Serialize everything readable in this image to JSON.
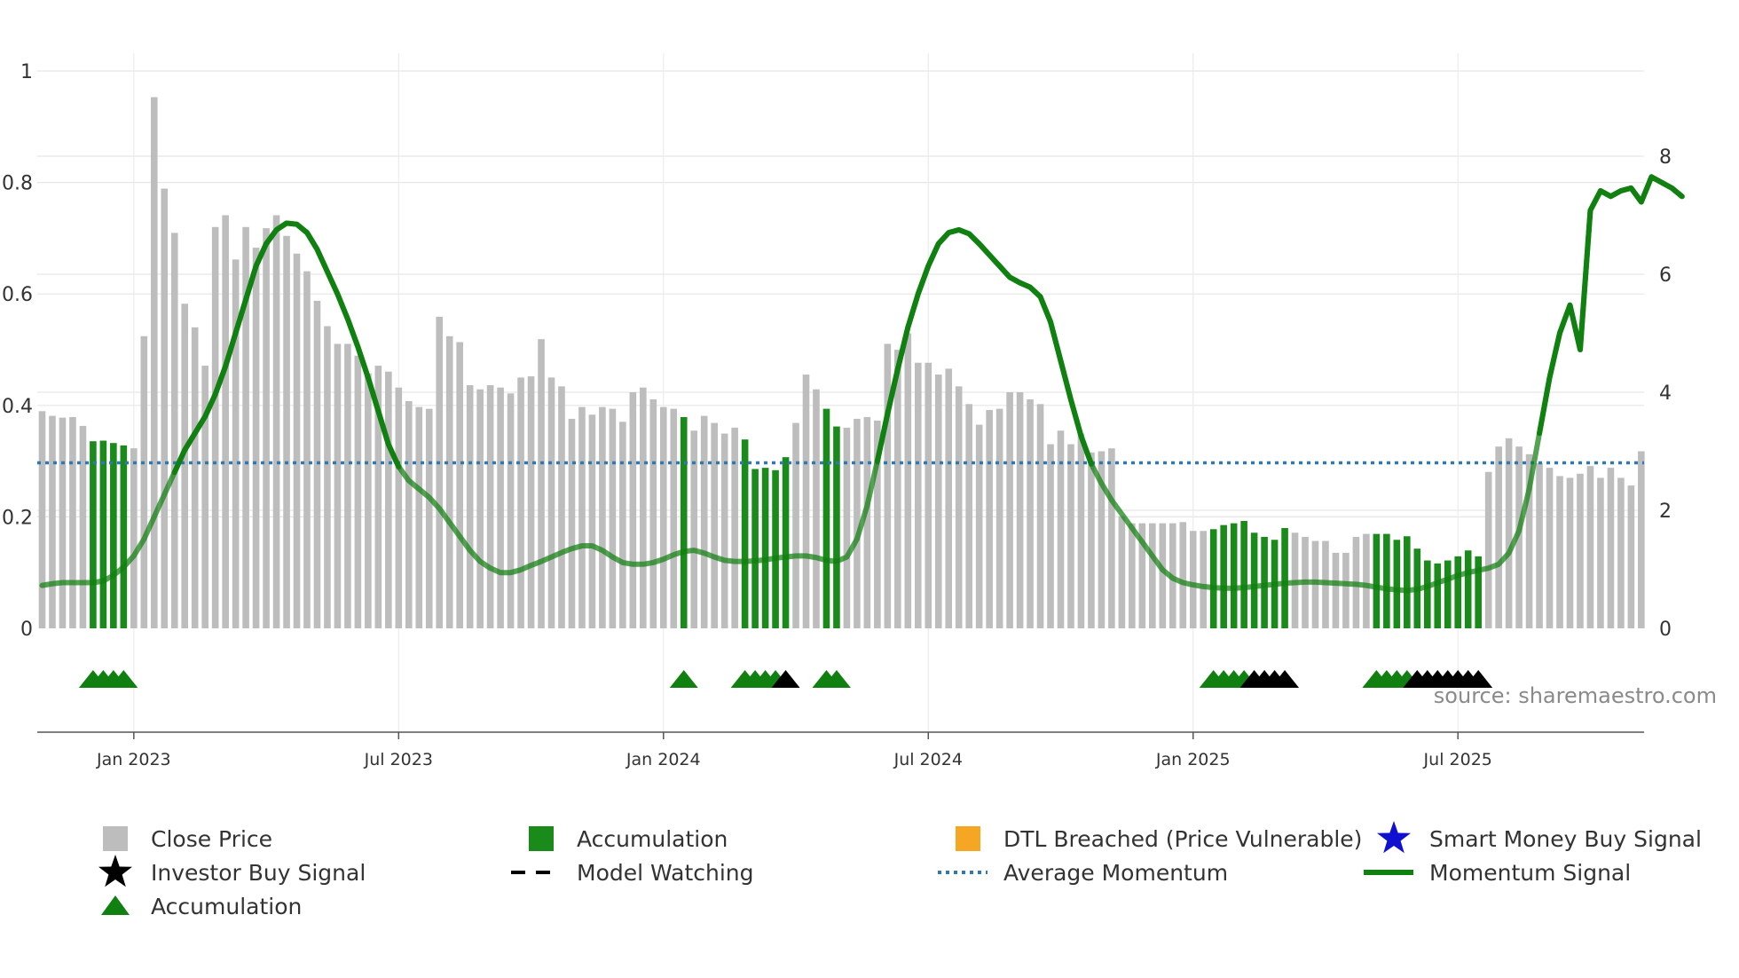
{
  "chart_data": {
    "type": "bar",
    "source": "source: sharemaestro.com",
    "colors": {
      "close": "#bdbdbd",
      "accumulation": "#1a8a1a",
      "momentum": "#108010",
      "average": "#2e78b4",
      "triangle_green": "#108010",
      "triangle_black": "#000000",
      "dtl": "#f5a623",
      "smart": "#1010d0",
      "grid": "#e6e6e6"
    },
    "left_axis": {
      "range": [
        0,
        1
      ],
      "ticks": [
        0,
        0.2,
        0.4,
        0.6,
        0.8,
        1
      ],
      "tick_labels": [
        "0",
        "0.2",
        "0.4",
        "0.6",
        "0.8",
        "1"
      ]
    },
    "right_axis": {
      "range": [
        0,
        10
      ],
      "ticks": [
        0,
        2,
        4,
        6,
        8
      ],
      "tick_labels": [
        "0",
        "2",
        "4",
        "6",
        "8"
      ]
    },
    "date_axis": {
      "first_week": "2022-10-31",
      "tick_weeks": [
        9,
        35,
        61,
        87,
        113,
        139
      ],
      "tick_labels": [
        "Jan 2023",
        "Jul 2023",
        "Jan 2024",
        "Jul 2024",
        "Jan 2025",
        "Jul 2025"
      ]
    },
    "average_momentum": 0.297,
    "close_values": [
      3.68,
      3.6,
      3.57,
      3.58,
      3.43,
      3.17,
      3.18,
      3.14,
      3.1,
      3.05,
      4.95,
      9.0,
      7.45,
      6.7,
      5.5,
      5.1,
      4.45,
      6.8,
      7.0,
      6.25,
      6.8,
      6.45,
      6.78,
      7.0,
      6.65,
      6.35,
      6.05,
      5.55,
      5.12,
      4.82,
      4.82,
      4.62,
      4.32,
      4.45,
      4.35,
      4.08,
      3.85,
      3.75,
      3.72,
      5.28,
      4.95,
      4.85,
      4.12,
      4.05,
      4.12,
      4.08,
      3.98,
      4.25,
      4.27,
      4.9,
      4.25,
      4.1,
      3.55,
      3.75,
      3.62,
      3.75,
      3.72,
      3.5,
      4.0,
      4.08,
      3.88,
      3.75,
      3.72,
      3.58,
      3.35,
      3.6,
      3.48,
      3.3,
      3.4,
      3.2,
      2.7,
      2.72,
      2.68,
      2.9,
      3.48,
      4.3,
      4.05,
      3.72,
      3.42,
      3.4,
      3.55,
      3.58,
      3.52,
      4.82,
      4.72,
      5.0,
      4.5,
      4.5,
      4.3,
      4.4,
      4.1,
      3.8,
      3.45,
      3.7,
      3.72,
      4.0,
      4.0,
      3.88,
      3.8,
      3.12,
      3.35,
      3.12,
      3.3,
      2.98,
      3.0,
      3.05,
      1.9,
      1.78,
      1.78,
      1.78,
      1.78,
      1.78,
      1.8,
      1.65,
      1.65,
      1.68,
      1.75,
      1.78,
      1.82,
      1.62,
      1.55,
      1.5,
      1.7,
      1.62,
      1.55,
      1.48,
      1.48,
      1.28,
      1.28,
      1.55,
      1.6,
      1.6,
      1.6,
      1.5,
      1.56,
      1.35,
      1.15,
      1.1,
      1.15,
      1.22,
      1.32,
      1.22,
      2.65,
      3.08,
      3.22,
      3.08,
      2.95,
      2.8,
      2.72,
      2.58,
      2.55,
      2.62,
      2.75,
      2.55,
      2.72,
      2.55,
      2.42,
      3.0
    ],
    "accumulation_weeks": [
      5,
      6,
      7,
      8,
      63,
      69,
      70,
      71,
      72,
      73,
      77,
      78,
      115,
      116,
      117,
      118,
      119,
      120,
      121,
      122,
      131,
      132,
      133,
      134,
      135,
      136,
      137,
      138,
      139,
      140,
      141
    ],
    "momentum_values": [
      0.077,
      0.08,
      0.082,
      0.082,
      0.082,
      0.082,
      0.085,
      0.095,
      0.11,
      0.13,
      0.16,
      0.2,
      0.24,
      0.28,
      0.32,
      0.35,
      0.38,
      0.42,
      0.47,
      0.53,
      0.59,
      0.65,
      0.69,
      0.715,
      0.727,
      0.725,
      0.71,
      0.68,
      0.64,
      0.6,
      0.555,
      0.505,
      0.45,
      0.39,
      0.33,
      0.29,
      0.265,
      0.25,
      0.235,
      0.215,
      0.19,
      0.165,
      0.14,
      0.12,
      0.108,
      0.1,
      0.1,
      0.105,
      0.113,
      0.12,
      0.128,
      0.136,
      0.143,
      0.148,
      0.148,
      0.14,
      0.128,
      0.118,
      0.115,
      0.115,
      0.118,
      0.124,
      0.132,
      0.138,
      0.14,
      0.135,
      0.128,
      0.122,
      0.12,
      0.12,
      0.121,
      0.123,
      0.126,
      0.128,
      0.13,
      0.13,
      0.127,
      0.122,
      0.12,
      0.128,
      0.16,
      0.22,
      0.3,
      0.385,
      0.465,
      0.54,
      0.6,
      0.65,
      0.69,
      0.71,
      0.715,
      0.708,
      0.69,
      0.67,
      0.65,
      0.63,
      0.62,
      0.612,
      0.595,
      0.55,
      0.48,
      0.41,
      0.345,
      0.295,
      0.26,
      0.23,
      0.205,
      0.18,
      0.155,
      0.13,
      0.105,
      0.09,
      0.082,
      0.078,
      0.075,
      0.073,
      0.072,
      0.072,
      0.073,
      0.075,
      0.077,
      0.079,
      0.081,
      0.082,
      0.083,
      0.083,
      0.082,
      0.081,
      0.08,
      0.079,
      0.077,
      0.074,
      0.071,
      0.069,
      0.068,
      0.07,
      0.075,
      0.082,
      0.088,
      0.095,
      0.1,
      0.104,
      0.108,
      0.115,
      0.135,
      0.175,
      0.25,
      0.35,
      0.45,
      0.53,
      0.58,
      0.5,
      0.75,
      0.785,
      0.775,
      0.785,
      0.79,
      0.765,
      0.81,
      0.8,
      0.79,
      0.775
    ],
    "triangle_rows": [
      {
        "week": 5,
        "color": "green"
      },
      {
        "week": 6,
        "color": "green"
      },
      {
        "week": 7,
        "color": "green"
      },
      {
        "week": 8,
        "color": "green"
      },
      {
        "week": 63,
        "color": "green"
      },
      {
        "week": 69,
        "color": "green"
      },
      {
        "week": 70,
        "color": "green"
      },
      {
        "week": 71,
        "color": "green"
      },
      {
        "week": 72,
        "color": "green"
      },
      {
        "week": 73,
        "color": "black"
      },
      {
        "week": 77,
        "color": "green"
      },
      {
        "week": 78,
        "color": "green"
      },
      {
        "week": 115,
        "color": "green"
      },
      {
        "week": 116,
        "color": "green"
      },
      {
        "week": 117,
        "color": "green"
      },
      {
        "week": 118,
        "color": "green"
      },
      {
        "week": 119,
        "color": "black"
      },
      {
        "week": 120,
        "color": "black"
      },
      {
        "week": 121,
        "color": "black"
      },
      {
        "week": 122,
        "color": "black"
      },
      {
        "week": 131,
        "color": "green"
      },
      {
        "week": 132,
        "color": "green"
      },
      {
        "week": 133,
        "color": "green"
      },
      {
        "week": 134,
        "color": "green"
      },
      {
        "week": 135,
        "color": "black"
      },
      {
        "week": 136,
        "color": "black"
      },
      {
        "week": 137,
        "color": "black"
      },
      {
        "week": 138,
        "color": "black"
      },
      {
        "week": 139,
        "color": "black"
      },
      {
        "week": 140,
        "color": "black"
      },
      {
        "week": 141,
        "color": "black"
      }
    ],
    "legend": [
      {
        "label": "Close Price",
        "marker": "square",
        "color": "#bdbdbd"
      },
      {
        "label": "Accumulation",
        "marker": "square",
        "color": "#1a8a1a"
      },
      {
        "label": "DTL Breached (Price Vulnerable)",
        "marker": "square",
        "color": "#f5a623"
      },
      {
        "label": "Smart Money Buy Signal",
        "marker": "star",
        "color": "#1010d0"
      },
      {
        "label": "Investor Buy Signal",
        "marker": "star",
        "color": "#000000"
      },
      {
        "label": "Model Watching",
        "marker": "dash",
        "color": "#000000"
      },
      {
        "label": "Average Momentum",
        "marker": "dot",
        "color": "#2e78b4"
      },
      {
        "label": "Momentum Signal",
        "marker": "line",
        "color": "#108010"
      },
      {
        "label": "Accumulation",
        "marker": "triangle",
        "color": "#108010"
      }
    ]
  }
}
